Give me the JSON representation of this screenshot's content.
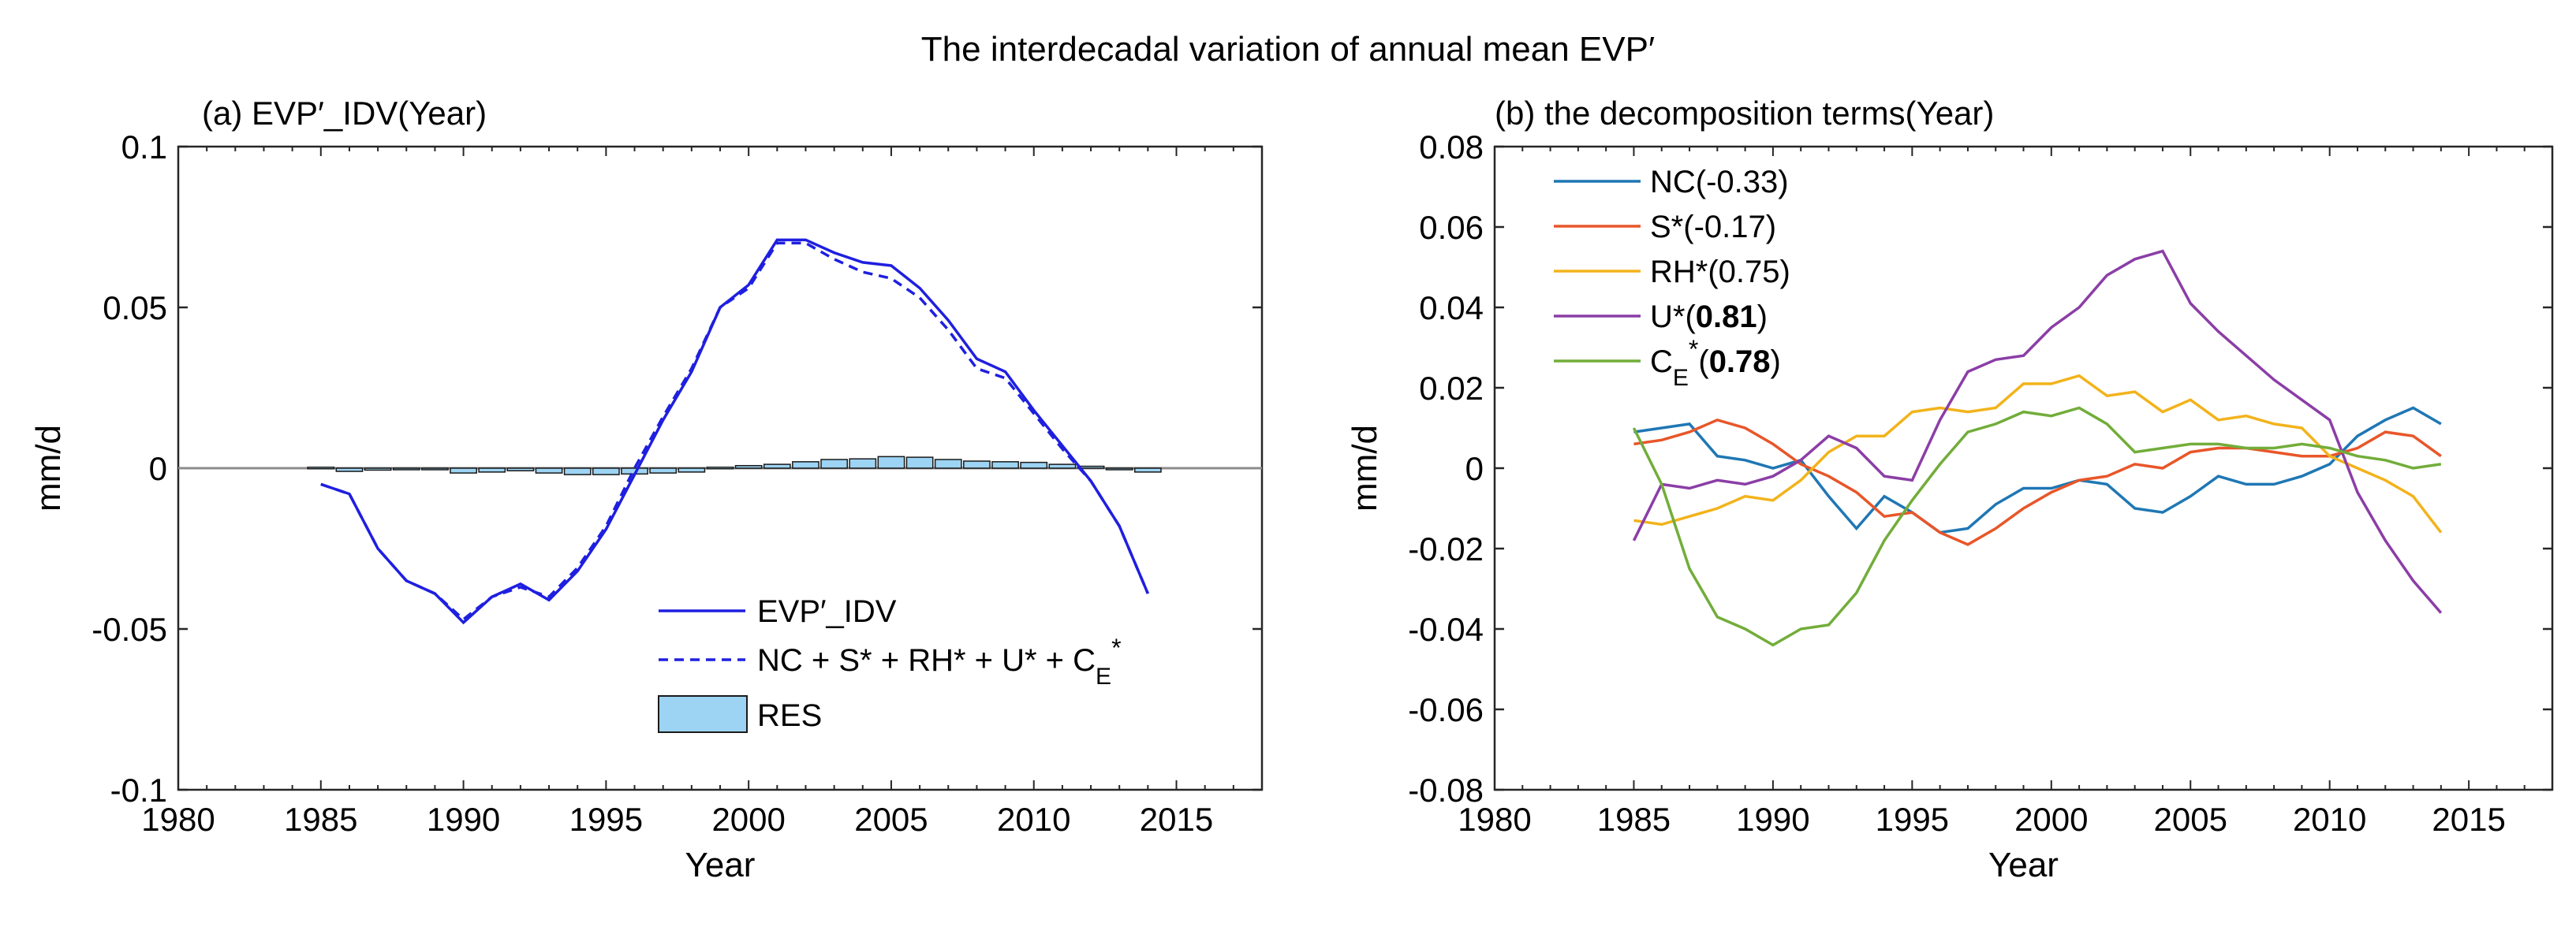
{
  "figure_title": "The interdecadal variation of annual mean EVP′",
  "chart_data": [
    {
      "panel": "a",
      "type": "line",
      "title": "(a) EVP′_IDV(Year)",
      "xlabel": "Year",
      "ylabel": "mm/d",
      "xlim": [
        1980,
        2018
      ],
      "ylim": [
        -0.1,
        0.1
      ],
      "xticks": [
        1980,
        1985,
        1990,
        1995,
        2000,
        2005,
        2010,
        2015
      ],
      "yticks": [
        -0.1,
        -0.05,
        0,
        0.05,
        0.1
      ],
      "ytick_labels": [
        "-0.1",
        "-0.05",
        "0",
        "0.05",
        "0.1"
      ],
      "zero_line": true,
      "x": [
        1985,
        1986,
        1987,
        1988,
        1989,
        1990,
        1991,
        1992,
        1993,
        1994,
        1995,
        1996,
        1997,
        1998,
        1999,
        2000,
        2001,
        2002,
        2003,
        2004,
        2005,
        2006,
        2007,
        2008,
        2009,
        2010,
        2011,
        2012,
        2013,
        2014
      ],
      "series": [
        {
          "name": "EVP′_IDV",
          "legend": "EVP′_IDV",
          "color": "#1f1fe0",
          "style": "solid",
          "values": [
            -0.005,
            -0.008,
            -0.025,
            -0.035,
            -0.039,
            -0.048,
            -0.04,
            -0.036,
            -0.041,
            -0.032,
            -0.019,
            -0.002,
            0.015,
            0.03,
            0.05,
            0.057,
            0.071,
            0.071,
            0.067,
            0.064,
            0.063,
            0.056,
            0.046,
            0.034,
            0.03,
            0.018,
            0.007,
            -0.004,
            -0.018,
            -0.039
          ]
        },
        {
          "name": "sum",
          "legend": "NC + S* + RH* + U* + C",
          "legend_sub": "E",
          "legend_tail": "*",
          "color": "#1f1fe0",
          "style": "dashed",
          "values": [
            -0.005,
            -0.008,
            -0.025,
            -0.035,
            -0.039,
            -0.047,
            -0.04,
            -0.037,
            -0.04,
            -0.031,
            -0.018,
            0.0,
            0.016,
            0.031,
            0.05,
            0.056,
            0.07,
            0.07,
            0.065,
            0.061,
            0.059,
            0.053,
            0.043,
            0.031,
            0.028,
            0.017,
            0.006,
            -0.004,
            -0.018,
            -0.039
          ]
        },
        {
          "name": "RES",
          "legend": "RES",
          "type": "bar",
          "color": "#9dd3f3",
          "values": [
            0.0003,
            -0.001,
            -0.0006,
            -0.0004,
            -0.0003,
            -0.0015,
            -0.0012,
            -0.0008,
            -0.0015,
            -0.002,
            -0.002,
            -0.0018,
            -0.0015,
            -0.0012,
            0.0003,
            0.0008,
            0.0012,
            0.002,
            0.0027,
            0.0029,
            0.0036,
            0.0034,
            0.0027,
            0.0022,
            0.002,
            0.0018,
            0.0012,
            0.0006,
            -0.0003,
            -0.0012
          ]
        }
      ],
      "legend_location": "lower-right"
    },
    {
      "panel": "b",
      "type": "line",
      "title": "(b) the decomposition terms(Year)",
      "xlabel": "Year",
      "ylabel": "mm/d",
      "xlim": [
        1980,
        2018
      ],
      "ylim": [
        -0.08,
        0.08
      ],
      "xticks": [
        1980,
        1985,
        1990,
        1995,
        2000,
        2005,
        2010,
        2015
      ],
      "yticks": [
        -0.08,
        -0.06,
        -0.04,
        -0.02,
        0,
        0.02,
        0.04,
        0.06,
        0.08
      ],
      "ytick_labels": [
        "-0.08",
        "-0.06",
        "-0.04",
        "-0.02",
        "0",
        "0.02",
        "0.04",
        "0.06",
        "0.08"
      ],
      "x": [
        1985,
        1986,
        1987,
        1988,
        1989,
        1990,
        1991,
        1992,
        1993,
        1994,
        1995,
        1996,
        1997,
        1998,
        1999,
        2000,
        2001,
        2002,
        2003,
        2004,
        2005,
        2006,
        2007,
        2008,
        2009,
        2010,
        2011,
        2012,
        2013,
        2014
      ],
      "series": [
        {
          "name": "NC",
          "legend_name": "NC",
          "legend_sub": "",
          "legend_corr": "(-0.33)",
          "bold": false,
          "color": "#1f77b4",
          "values": [
            0.009,
            0.01,
            0.011,
            0.003,
            0.002,
            0.0,
            0.002,
            -0.007,
            -0.015,
            -0.007,
            -0.011,
            -0.016,
            -0.015,
            -0.009,
            -0.005,
            -0.005,
            -0.003,
            -0.004,
            -0.01,
            -0.011,
            -0.007,
            -0.002,
            -0.004,
            -0.004,
            -0.002,
            0.001,
            0.008,
            0.012,
            0.015,
            0.011
          ]
        },
        {
          "name": "S*",
          "legend_name": "S*",
          "legend_sub": "",
          "legend_corr": "(-0.17)",
          "bold": false,
          "color": "#e8562a",
          "values": [
            0.006,
            0.007,
            0.009,
            0.012,
            0.01,
            0.006,
            0.001,
            -0.002,
            -0.006,
            -0.012,
            -0.011,
            -0.016,
            -0.019,
            -0.015,
            -0.01,
            -0.006,
            -0.003,
            -0.002,
            0.001,
            0.0,
            0.004,
            0.005,
            0.005,
            0.004,
            0.003,
            0.003,
            0.005,
            0.009,
            0.008,
            0.003
          ]
        },
        {
          "name": "RH*",
          "legend_name": "RH*",
          "legend_sub": "",
          "legend_corr": "(0.75)",
          "bold": false,
          "color": "#f2b31b",
          "values": [
            -0.013,
            -0.014,
            -0.012,
            -0.01,
            -0.007,
            -0.008,
            -0.003,
            0.004,
            0.008,
            0.008,
            0.014,
            0.015,
            0.014,
            0.015,
            0.021,
            0.021,
            0.023,
            0.018,
            0.019,
            0.014,
            0.017,
            0.012,
            0.013,
            0.011,
            0.01,
            0.003,
            0.0,
            -0.003,
            -0.007,
            -0.016
          ]
        },
        {
          "name": "U*",
          "legend_name": "U*",
          "legend_sub": "",
          "legend_corr": "0.81",
          "bold": true,
          "color": "#8b3ea6",
          "values": [
            -0.018,
            -0.004,
            -0.005,
            -0.003,
            -0.004,
            -0.002,
            0.002,
            0.008,
            0.005,
            -0.002,
            -0.003,
            0.012,
            0.024,
            0.027,
            0.028,
            0.035,
            0.04,
            0.048,
            0.052,
            0.054,
            0.041,
            0.034,
            0.028,
            0.022,
            0.017,
            0.012,
            -0.006,
            -0.018,
            -0.028,
            -0.036
          ]
        },
        {
          "name": "CE*",
          "legend_name": "C",
          "legend_sub": "E",
          "legend_corr": "0.78",
          "bold": true,
          "color": "#72ad3a",
          "values": [
            0.01,
            -0.004,
            -0.025,
            -0.037,
            -0.04,
            -0.044,
            -0.04,
            -0.039,
            -0.031,
            -0.018,
            -0.008,
            0.001,
            0.009,
            0.011,
            0.014,
            0.013,
            0.015,
            0.011,
            0.004,
            0.005,
            0.006,
            0.006,
            0.005,
            0.005,
            0.006,
            0.005,
            0.003,
            0.002,
            0.0,
            0.001
          ]
        }
      ],
      "legend_location": "top-left"
    }
  ]
}
